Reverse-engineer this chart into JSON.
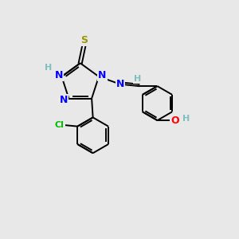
{
  "bg_color": "#e8e8e8",
  "bond_color": "#000000",
  "bond_width": 1.4,
  "atom_colors": {
    "N": "#0000ff",
    "S": "#999900",
    "O": "#ff0000",
    "Cl": "#00bb00",
    "C": "#000000",
    "H": "#7fbfbf"
  },
  "font_size_atom": 9,
  "font_size_h": 8,
  "font_size_cl": 8
}
